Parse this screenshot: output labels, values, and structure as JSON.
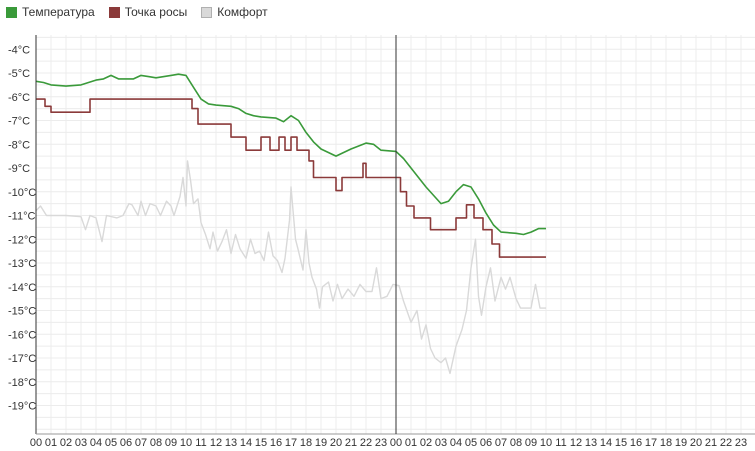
{
  "legend": {
    "items": [
      {
        "label": "Температура",
        "color": "#3a9a3a"
      },
      {
        "label": "Точка росы",
        "color": "#8b3a3a"
      },
      {
        "label": "Комфорт",
        "color": "#d9d9d9"
      }
    ],
    "placement": "top-left"
  },
  "chart_data": {
    "type": "line",
    "title": "",
    "xlabel": "",
    "ylabel": "",
    "grid": true,
    "xlim": [
      0,
      48
    ],
    "ylim": [
      -20.2,
      -3.4
    ],
    "x_tick_labels": [
      "00",
      "01",
      "02",
      "03",
      "04",
      "05",
      "06",
      "07",
      "08",
      "09",
      "10",
      "11",
      "12",
      "13",
      "14",
      "15",
      "16",
      "17",
      "18",
      "19",
      "20",
      "21",
      "22",
      "23",
      "00",
      "01",
      "02",
      "03",
      "04",
      "05",
      "06",
      "07",
      "08",
      "09",
      "10",
      "11",
      "12",
      "13",
      "14",
      "15",
      "16",
      "17",
      "18",
      "19",
      "20",
      "21",
      "22",
      "23"
    ],
    "y_ticks": [
      {
        "value": -4,
        "label": "-4°C"
      },
      {
        "value": -5,
        "label": "-5°C"
      },
      {
        "value": -6,
        "label": "-6°C"
      },
      {
        "value": -7,
        "label": "-7°C"
      },
      {
        "value": -8,
        "label": "-8°C"
      },
      {
        "value": -9,
        "label": "-9°C"
      },
      {
        "value": -10,
        "label": "-10°C"
      },
      {
        "value": -11,
        "label": "-11°C"
      },
      {
        "value": -12,
        "label": "-12°C"
      },
      {
        "value": -13,
        "label": "-13°C"
      },
      {
        "value": -14,
        "label": "-14°C"
      },
      {
        "value": -15,
        "label": "-15°C"
      },
      {
        "value": -16,
        "label": "-16°C"
      },
      {
        "value": -17,
        "label": "-17°C"
      },
      {
        "value": -18,
        "label": "-18°C"
      },
      {
        "value": -19,
        "label": "-19°C"
      }
    ],
    "marker_x": 24,
    "series": [
      {
        "name": "Температура",
        "color": "#3a9a3a",
        "step": false,
        "points": [
          [
            0,
            -5.35
          ],
          [
            0.5,
            -5.4
          ],
          [
            1,
            -5.5
          ],
          [
            2,
            -5.55
          ],
          [
            3,
            -5.5
          ],
          [
            3.5,
            -5.4
          ],
          [
            4,
            -5.3
          ],
          [
            4.5,
            -5.25
          ],
          [
            5,
            -5.1
          ],
          [
            5.5,
            -5.25
          ],
          [
            6.5,
            -5.25
          ],
          [
            7,
            -5.1
          ],
          [
            7.5,
            -5.15
          ],
          [
            8,
            -5.2
          ],
          [
            9,
            -5.1
          ],
          [
            9.5,
            -5.05
          ],
          [
            10,
            -5.1
          ],
          [
            10.5,
            -5.6
          ],
          [
            11,
            -6.1
          ],
          [
            11.5,
            -6.3
          ],
          [
            12,
            -6.35
          ],
          [
            13,
            -6.4
          ],
          [
            13.5,
            -6.5
          ],
          [
            14,
            -6.7
          ],
          [
            14.5,
            -6.8
          ],
          [
            15,
            -6.85
          ],
          [
            16,
            -6.9
          ],
          [
            16.5,
            -7.05
          ],
          [
            17,
            -6.8
          ],
          [
            17.5,
            -7.0
          ],
          [
            18,
            -7.5
          ],
          [
            18.5,
            -7.9
          ],
          [
            19,
            -8.2
          ],
          [
            20,
            -8.5
          ],
          [
            21,
            -8.2
          ],
          [
            22,
            -7.95
          ],
          [
            22.5,
            -8.0
          ],
          [
            23,
            -8.25
          ],
          [
            24,
            -8.3
          ],
          [
            24.5,
            -8.6
          ],
          [
            25,
            -9.0
          ],
          [
            26,
            -9.8
          ],
          [
            27,
            -10.5
          ],
          [
            27.5,
            -10.4
          ],
          [
            28,
            -10.0
          ],
          [
            28.5,
            -9.7
          ],
          [
            29,
            -9.8
          ],
          [
            29.5,
            -10.3
          ],
          [
            30,
            -10.9
          ],
          [
            30.5,
            -11.4
          ],
          [
            31,
            -11.7
          ],
          [
            32,
            -11.75
          ],
          [
            32.5,
            -11.8
          ],
          [
            33,
            -11.7
          ],
          [
            33.5,
            -11.55
          ],
          [
            34,
            -11.55
          ]
        ]
      },
      {
        "name": "Точка росы",
        "color": "#8b3a3a",
        "step": true,
        "points": [
          [
            0,
            -6.1
          ],
          [
            0.6,
            -6.4
          ],
          [
            1,
            -6.65
          ],
          [
            3.6,
            -6.1
          ],
          [
            10.4,
            -6.5
          ],
          [
            10.8,
            -7.15
          ],
          [
            13,
            -7.7
          ],
          [
            14,
            -8.25
          ],
          [
            15,
            -7.7
          ],
          [
            15.6,
            -8.25
          ],
          [
            16.2,
            -7.7
          ],
          [
            16.6,
            -8.25
          ],
          [
            17,
            -7.7
          ],
          [
            17.4,
            -8.25
          ],
          [
            18.2,
            -8.7
          ],
          [
            18.5,
            -9.4
          ],
          [
            20,
            -9.95
          ],
          [
            20.4,
            -9.4
          ],
          [
            21.8,
            -8.8
          ],
          [
            22,
            -9.4
          ],
          [
            24.3,
            -10.0
          ],
          [
            24.7,
            -10.6
          ],
          [
            25.2,
            -11.1
          ],
          [
            26.3,
            -11.6
          ],
          [
            28,
            -11.1
          ],
          [
            28.7,
            -10.55
          ],
          [
            29.2,
            -11.1
          ],
          [
            29.8,
            -11.6
          ],
          [
            30.4,
            -12.2
          ],
          [
            30.9,
            -12.75
          ],
          [
            34,
            -12.75
          ]
        ]
      },
      {
        "name": "Комфорт",
        "color": "#d9d9d9",
        "step": false,
        "points": [
          [
            0,
            -10.8
          ],
          [
            0.3,
            -10.6
          ],
          [
            0.7,
            -11.0
          ],
          [
            2,
            -11.0
          ],
          [
            3,
            -11.05
          ],
          [
            3.3,
            -11.6
          ],
          [
            3.6,
            -11.0
          ],
          [
            4,
            -11.1
          ],
          [
            4.4,
            -12.1
          ],
          [
            4.7,
            -11.0
          ],
          [
            5.4,
            -11.1
          ],
          [
            5.8,
            -11.0
          ],
          [
            6.2,
            -10.5
          ],
          [
            6.4,
            -10.55
          ],
          [
            6.8,
            -11.0
          ],
          [
            7,
            -10.4
          ],
          [
            7.3,
            -11.0
          ],
          [
            7.6,
            -10.5
          ],
          [
            8,
            -10.6
          ],
          [
            8.3,
            -11.0
          ],
          [
            8.7,
            -10.4
          ],
          [
            9,
            -10.6
          ],
          [
            9.2,
            -11.0
          ],
          [
            9.6,
            -10.2
          ],
          [
            9.8,
            -9.4
          ],
          [
            10,
            -10.6
          ],
          [
            10.1,
            -8.7
          ],
          [
            10.3,
            -9.5
          ],
          [
            10.5,
            -10.5
          ],
          [
            10.8,
            -10.3
          ],
          [
            11,
            -11.3
          ],
          [
            11.3,
            -11.8
          ],
          [
            11.6,
            -12.4
          ],
          [
            11.8,
            -11.7
          ],
          [
            12.1,
            -12.5
          ],
          [
            12.4,
            -12.1
          ],
          [
            12.7,
            -11.6
          ],
          [
            13,
            -12.6
          ],
          [
            13.3,
            -11.8
          ],
          [
            13.6,
            -12.4
          ],
          [
            14,
            -12.8
          ],
          [
            14.3,
            -12.0
          ],
          [
            14.6,
            -12.6
          ],
          [
            14.9,
            -12.5
          ],
          [
            15.2,
            -12.9
          ],
          [
            15.5,
            -11.7
          ],
          [
            15.8,
            -12.7
          ],
          [
            16.1,
            -12.9
          ],
          [
            16.4,
            -13.4
          ],
          [
            16.6,
            -12.8
          ],
          [
            16.9,
            -11.2
          ],
          [
            17,
            -9.8
          ],
          [
            17.3,
            -12.0
          ],
          [
            17.5,
            -12.5
          ],
          [
            17.8,
            -13.3
          ],
          [
            18,
            -11.6
          ],
          [
            18.2,
            -13.0
          ],
          [
            18.4,
            -13.6
          ],
          [
            18.7,
            -14.1
          ],
          [
            18.9,
            -14.9
          ],
          [
            19.1,
            -14.0
          ],
          [
            19.5,
            -13.8
          ],
          [
            19.8,
            -14.6
          ],
          [
            20.1,
            -13.9
          ],
          [
            20.4,
            -14.5
          ],
          [
            20.8,
            -14.1
          ],
          [
            21.2,
            -14.4
          ],
          [
            21.6,
            -13.9
          ],
          [
            22,
            -14.2
          ],
          [
            22.4,
            -14.2
          ],
          [
            22.7,
            -13.2
          ],
          [
            23,
            -14.5
          ],
          [
            23.4,
            -14.4
          ],
          [
            23.8,
            -13.9
          ],
          [
            24.2,
            -13.95
          ],
          [
            24.5,
            -14.6
          ],
          [
            25,
            -15.5
          ],
          [
            25.4,
            -15.0
          ],
          [
            25.7,
            -16.2
          ],
          [
            26,
            -15.6
          ],
          [
            26.3,
            -16.6
          ],
          [
            26.6,
            -17.0
          ],
          [
            27,
            -17.2
          ],
          [
            27.3,
            -17.0
          ],
          [
            27.6,
            -17.65
          ],
          [
            28,
            -16.5
          ],
          [
            28.4,
            -15.8
          ],
          [
            28.7,
            -15.0
          ],
          [
            29,
            -13.2
          ],
          [
            29.3,
            -12.0
          ],
          [
            29.5,
            -14.4
          ],
          [
            29.7,
            -15.2
          ],
          [
            30,
            -14.0
          ],
          [
            30.3,
            -13.2
          ],
          [
            30.6,
            -14.6
          ],
          [
            31,
            -13.6
          ],
          [
            31.3,
            -14.1
          ],
          [
            31.6,
            -13.6
          ],
          [
            32,
            -14.5
          ],
          [
            32.3,
            -14.9
          ],
          [
            32.6,
            -14.9
          ],
          [
            33,
            -14.9
          ],
          [
            33.3,
            -13.9
          ],
          [
            33.6,
            -14.9
          ],
          [
            34,
            -14.9
          ]
        ]
      }
    ]
  }
}
